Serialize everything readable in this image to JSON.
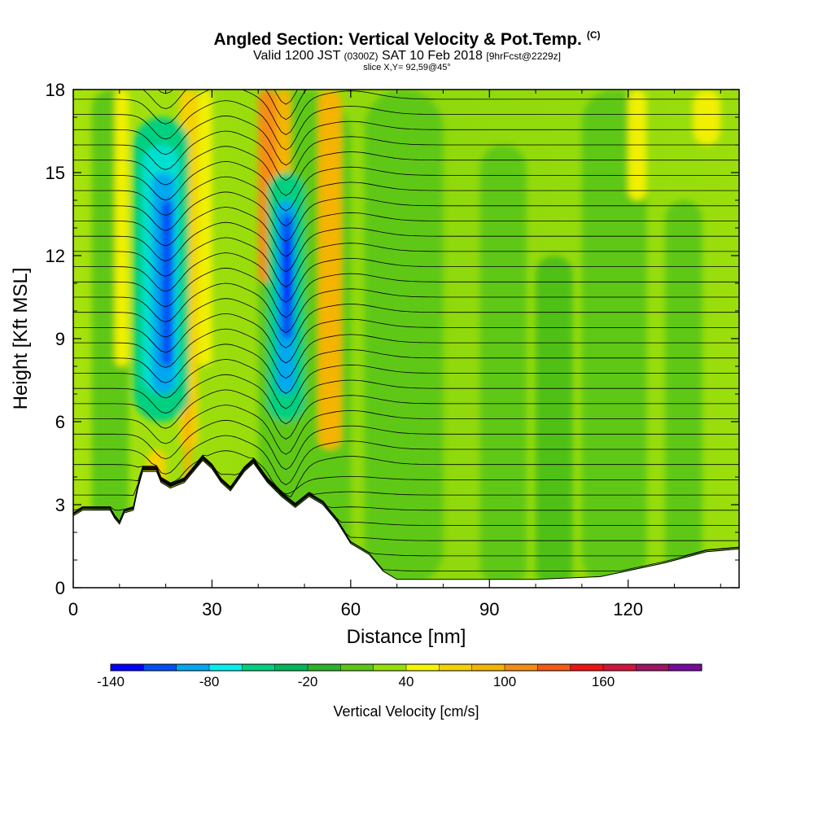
{
  "title": {
    "main": "Angled Section: Vertical Velocity & Pot.Temp.",
    "main_suffix": "(C)",
    "valid_prefix": "Valid 1200 JST",
    "valid_zulu": "(0300Z)",
    "valid_date": "SAT 10 Feb 2018",
    "forecast": "[9hrFcst@2229z]",
    "slice": "slice X,Y= 92,59@45°"
  },
  "chart_data": {
    "type": "heatmap",
    "xlabel": "Distance [nm]",
    "ylabel": "Height [Kft MSL]",
    "xlim": [
      0,
      144
    ],
    "ylim": [
      0,
      18
    ],
    "x_ticks": [
      "0",
      "30",
      "60",
      "90",
      "120"
    ],
    "y_ticks": [
      "0",
      "3",
      "6",
      "9",
      "12",
      "15",
      "18"
    ],
    "x_tick_values": [
      0,
      30,
      60,
      90,
      120
    ],
    "y_tick_values": [
      0,
      3,
      6,
      9,
      12,
      15,
      18
    ],
    "terrain_kft": [
      [
        0,
        2.6
      ],
      [
        2,
        2.8
      ],
      [
        8,
        2.8
      ],
      [
        9,
        2.5
      ],
      [
        10,
        2.3
      ],
      [
        11,
        2.7
      ],
      [
        13,
        2.8
      ],
      [
        14,
        3.6
      ],
      [
        15,
        4.2
      ],
      [
        18,
        4.2
      ],
      [
        19,
        3.8
      ],
      [
        21,
        3.6
      ],
      [
        24,
        3.8
      ],
      [
        26,
        4.2
      ],
      [
        28,
        4.6
      ],
      [
        30,
        4.3
      ],
      [
        32,
        3.8
      ],
      [
        34,
        3.5
      ],
      [
        37,
        4.2
      ],
      [
        39,
        4.5
      ],
      [
        42,
        3.8
      ],
      [
        45,
        3.3
      ],
      [
        48,
        2.9
      ],
      [
        51,
        3.3
      ],
      [
        54,
        3.0
      ],
      [
        57,
        2.4
      ],
      [
        60,
        1.6
      ],
      [
        64,
        1.2
      ],
      [
        67,
        0.6
      ],
      [
        70,
        0.3
      ],
      [
        100,
        0.3
      ],
      [
        114,
        0.4
      ],
      [
        128,
        0.9
      ],
      [
        137,
        1.3
      ],
      [
        144,
        1.4
      ]
    ],
    "vertical_velocity_cores": [
      {
        "x": 20,
        "y": 11.0,
        "peak_cm_s": -100
      },
      {
        "x": 46,
        "y": 11.5,
        "peak_cm_s": -140
      },
      {
        "x": 42,
        "y": 15.5,
        "peak_cm_s": 100
      },
      {
        "x": 55,
        "y": 14.0,
        "peak_cm_s": 80
      },
      {
        "x": 25,
        "y": 16.0,
        "peak_cm_s": 60
      }
    ],
    "colorbar": {
      "title": "Vertical Velocity [cm/s]",
      "colors": [
        "#0000ff",
        "#0050f5",
        "#00a8f0",
        "#00f0f0",
        "#00d080",
        "#00b85a",
        "#28b428",
        "#5ac814",
        "#96e00a",
        "#f5f500",
        "#f5d200",
        "#f5b400",
        "#f58c14",
        "#f55a14",
        "#f01414",
        "#d2143c",
        "#a01464",
        "#780aa0"
      ],
      "labels": [
        "-140",
        "-80",
        "-20",
        "40",
        "100",
        "160"
      ]
    }
  }
}
